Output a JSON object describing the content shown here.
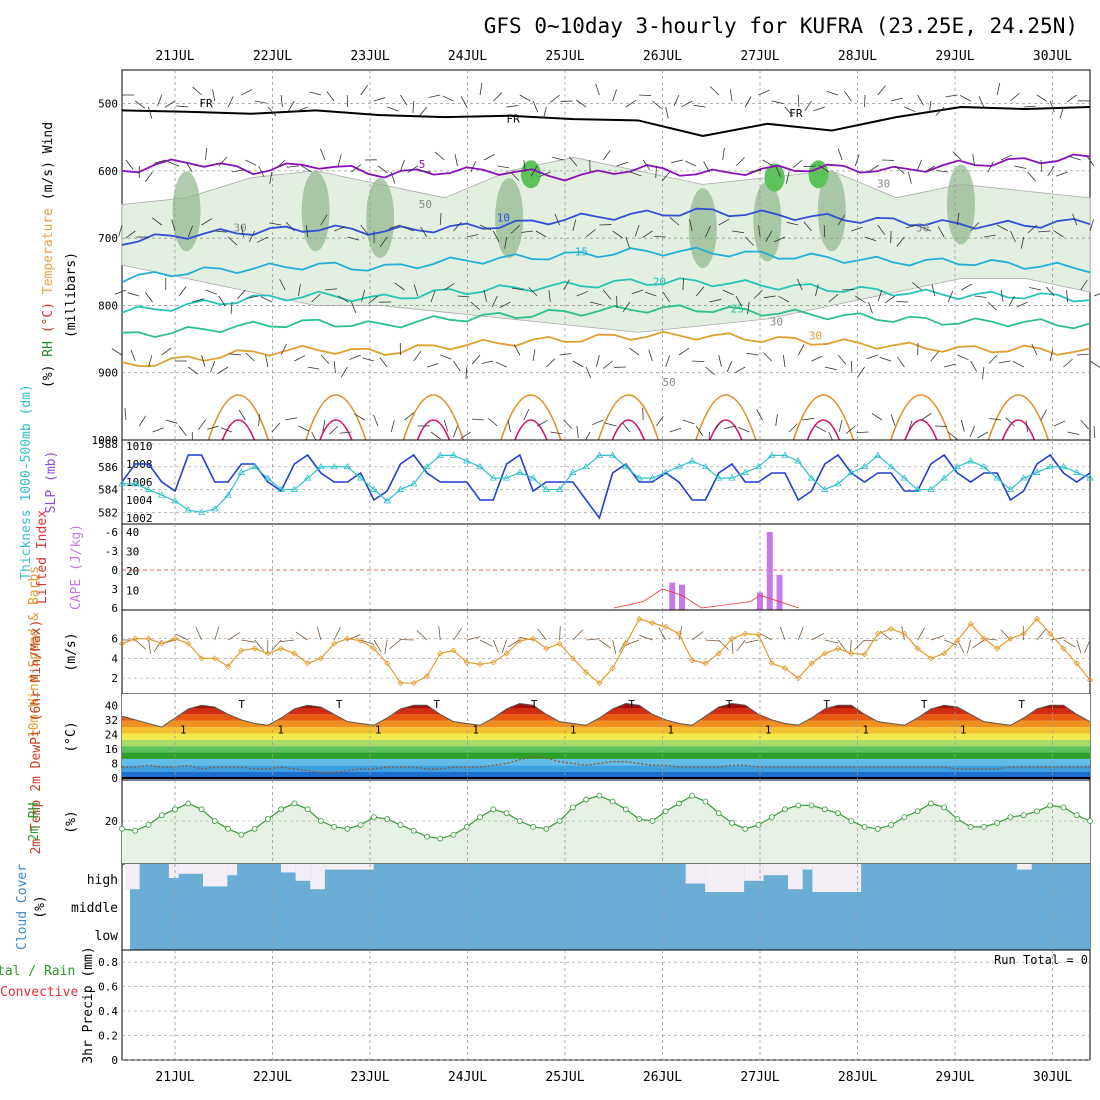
{
  "title": "GFS 0~10day 3-hourly for KUFRA (23.25E, 24.25N)",
  "dates": [
    "21JUL",
    "22JUL",
    "23JUL",
    "24JUL",
    "25JUL",
    "26JUL",
    "27JUL",
    "28JUL",
    "29JUL",
    "30JUL"
  ],
  "colors": {
    "wind_barb": "#333333",
    "rh_light": "#e3f0e1",
    "rh_mid": "#bdd6b9",
    "rh_dark": "#8fb58a",
    "rh_green": "#5ec25a",
    "fr_line": "#000000",
    "slp": "#1f3fd0",
    "thickness": "#2fc2cc",
    "lifted_index": "#e03030",
    "cape": "#c779e8",
    "wind10m": "#e39b2e",
    "rh2m_line": "#3a9a3a",
    "rh2m_fill": "#e6f2e3",
    "cloud": "#6aaed6",
    "cloud_gap": "#f3eef6",
    "grid": "#999999"
  },
  "chart_data": [
    {
      "type": "heatmap",
      "name": "upper-air",
      "ylabel_parts": [
        "Wind",
        "(m/s)",
        "Temperature",
        "(°C)",
        "RH",
        "(%)",
        "(millibars)"
      ],
      "y_ticks": [
        "500",
        "600",
        "700",
        "800",
        "900",
        "1000"
      ],
      "ylim": [
        450,
        1000
      ],
      "freezing_level_label": "FR",
      "freezing_level_mb": [
        510,
        512,
        515,
        510,
        517,
        520,
        518,
        523,
        525,
        548,
        530,
        540,
        520,
        505,
        508,
        505
      ],
      "isotherms": [
        {
          "label": "5",
          "mb": [
            600,
            585,
            600,
            590,
            605,
            600,
            600,
            610,
            595,
            605,
            598,
            595,
            600,
            590,
            585,
            580
          ]
        },
        {
          "label": "10",
          "mb": [
            705,
            695,
            690,
            685,
            690,
            685,
            680,
            670,
            665,
            660,
            665,
            670,
            675,
            680,
            680,
            675
          ]
        },
        {
          "label": "15",
          "mb": [
            760,
            750,
            745,
            740,
            745,
            735,
            730,
            725,
            720,
            720,
            725,
            730,
            735,
            735,
            740,
            745
          ]
        },
        {
          "label": "20",
          "mb": [
            810,
            800,
            790,
            785,
            790,
            780,
            775,
            770,
            765,
            765,
            770,
            775,
            780,
            785,
            785,
            790
          ]
        },
        {
          "label": "25",
          "mb": [
            845,
            838,
            830,
            825,
            830,
            820,
            815,
            810,
            805,
            805,
            810,
            815,
            820,
            825,
            825,
            830
          ]
        },
        {
          "label": "30",
          "mb": [
            890,
            880,
            870,
            865,
            870,
            860,
            855,
            850,
            845,
            845,
            850,
            855,
            860,
            865,
            865,
            870
          ]
        }
      ],
      "rh_labels": [
        "30",
        "50",
        "30",
        "50",
        "30",
        "50",
        "30",
        "30",
        "30",
        "50",
        "30",
        "30",
        "30"
      ],
      "rh_bands_mb": [
        {
          "top": [
            650,
            640,
            610,
            600,
            620,
            640,
            600,
            580,
            600,
            620,
            610,
            600,
            640,
            620,
            630,
            640
          ],
          "bottom": [
            740,
            760,
            780,
            800,
            800,
            810,
            820,
            830,
            840,
            830,
            820,
            800,
            780,
            760,
            760,
            780
          ]
        }
      ]
    },
    {
      "type": "line",
      "name": "thickness-slp",
      "ylabel": "Thickness 1000-500mb (dm)",
      "ylabel2": "SLP (mb)",
      "y_ticks_left": [
        "582",
        "584",
        "586",
        "588"
      ],
      "y_ticks_right": [
        "1002",
        "1004",
        "1006",
        "1008",
        "1010"
      ],
      "series": [
        {
          "name": "SLP (mb)",
          "values": [
            1006,
            1008,
            1008,
            1006,
            1005,
            1009,
            1009,
            1006,
            1006,
            1008,
            1008,
            1006,
            1005,
            1008,
            1009,
            1007,
            1006,
            1006,
            1007,
            1004,
            1005,
            1008,
            1009,
            1007,
            1006,
            1006,
            1006,
            1004,
            1004,
            1008,
            1009,
            1005,
            1006,
            1006,
            1006,
            1004,
            1002,
            1007,
            1008,
            1006,
            1006,
            1007,
            1006,
            1004,
            1004,
            1007,
            1008,
            1006,
            1006,
            1007,
            1007,
            1004,
            1005,
            1008,
            1009,
            1007,
            1006,
            1007,
            1007,
            1005,
            1005,
            1008,
            1009,
            1007,
            1006,
            1007,
            1007,
            1004,
            1005,
            1008,
            1009,
            1007,
            1006,
            1007
          ]
        },
        {
          "name": "Thickness (dm)",
          "values": [
            584.5,
            584.5,
            584,
            583.5,
            583,
            582.2,
            582,
            582.3,
            583.5,
            585.5,
            586,
            585,
            584,
            584,
            585,
            586,
            586,
            586,
            585,
            584,
            583,
            584,
            584.5,
            586,
            587,
            587,
            586.5,
            586,
            585,
            585,
            585.5,
            585,
            584,
            584,
            585.5,
            586,
            587,
            587,
            586,
            585,
            585,
            585.5,
            586,
            586.5,
            586,
            585,
            585,
            585.5,
            586,
            587,
            587,
            586.5,
            585,
            584,
            584.5,
            585.5,
            586,
            587,
            586,
            585,
            584,
            584,
            585,
            586,
            586.5,
            586,
            585,
            584,
            585,
            585.5,
            586,
            586,
            585.5,
            585
          ]
        }
      ]
    },
    {
      "type": "bar",
      "name": "lifted-cape",
      "ylabel": "Lifted Index",
      "ylabel2": "CAPE (J/kg)",
      "y_ticks_left": [
        "-6",
        "-3",
        "0",
        "3",
        "6"
      ],
      "y_ticks_right": [
        "10",
        "20",
        "30",
        "40"
      ],
      "cape_bars": [
        {
          "day_offset": 5.1,
          "value": 14
        },
        {
          "day_offset": 5.2,
          "value": 13
        },
        {
          "day_offset": 6.0,
          "value": 9
        },
        {
          "day_offset": 6.1,
          "value": 40
        },
        {
          "day_offset": 6.2,
          "value": 18
        }
      ],
      "lifted_index": [
        {
          "day_offset": 4.5,
          "value": 6
        },
        {
          "day_offset": 4.8,
          "value": 5
        },
        {
          "day_offset": 5.0,
          "value": 3
        },
        {
          "day_offset": 5.2,
          "value": 4
        },
        {
          "day_offset": 5.4,
          "value": 6
        },
        {
          "day_offset": 5.9,
          "value": 5
        },
        {
          "day_offset": 6.0,
          "value": 4
        },
        {
          "day_offset": 6.2,
          "value": 5
        },
        {
          "day_offset": 6.4,
          "value": 6
        }
      ]
    },
    {
      "type": "line",
      "name": "wind10m",
      "ylabel": "10m Wind Speed & Barbs",
      "yunit": "(m/s)",
      "y_ticks": [
        "2",
        "4",
        "6"
      ],
      "series": [
        {
          "name": "10m Wind",
          "values": [
            5.5,
            6,
            6,
            5.5,
            6,
            5.5,
            4,
            4,
            3.2,
            4.8,
            5,
            4.5,
            5,
            4.5,
            3.5,
            4,
            5.5,
            6,
            5.8,
            5,
            3.5,
            1.5,
            1.5,
            2.2,
            4.5,
            4.8,
            3.6,
            3.4,
            3.6,
            4.5,
            5.8,
            6,
            5,
            5.5,
            4,
            2.6,
            1.5,
            3,
            5.5,
            8,
            7.6,
            7.2,
            6.5,
            3.8,
            3.5,
            4.5,
            6,
            6.5,
            6.4,
            3.5,
            3,
            2,
            3.5,
            4.5,
            5,
            4.5,
            4.4,
            6.5,
            7,
            6.5,
            5,
            4,
            4.5,
            5.8,
            7.5,
            6,
            5,
            6,
            6.5,
            8,
            6.5,
            5,
            3.5,
            1.8
          ]
        }
      ]
    },
    {
      "type": "area",
      "name": "temp2m",
      "ylabel": "2m Temp 2m DewPt (6hr Min/Max)",
      "yunit": "(°C)",
      "y_ticks": [
        "0",
        "8",
        "16",
        "24",
        "32",
        "40"
      ],
      "max_label": "T",
      "min_label": "1",
      "series": [
        {
          "name": "2m Temp",
          "values": [
            34,
            32,
            30,
            28,
            33,
            38,
            40,
            39,
            35,
            32,
            30,
            29,
            33,
            38,
            40,
            39,
            35,
            31,
            30,
            29,
            33,
            38,
            40,
            40,
            35,
            31,
            30,
            29,
            33,
            38,
            41,
            40,
            35,
            31,
            30,
            29,
            33,
            38,
            41,
            40,
            35,
            32,
            30,
            29,
            34,
            39,
            41,
            40,
            35,
            32,
            30,
            29,
            33,
            38,
            40,
            40,
            35,
            31,
            30,
            29,
            33,
            38,
            40,
            39,
            35,
            31,
            30,
            29,
            33,
            38,
            40,
            40,
            35,
            31
          ]
        },
        {
          "name": "2m DewPt",
          "values": [
            6,
            6,
            7,
            6,
            6,
            7,
            5,
            6,
            6,
            6,
            5,
            5,
            6,
            5,
            4,
            3,
            3,
            4,
            5,
            5,
            6,
            6,
            6,
            5,
            5,
            6,
            6,
            6,
            7,
            8,
            10,
            12,
            11,
            9,
            8,
            7,
            8,
            9,
            9,
            8,
            7,
            7,
            6,
            6,
            6,
            6,
            7,
            7,
            6,
            6,
            6,
            6,
            6,
            6,
            6,
            6,
            6,
            6,
            6,
            6,
            6,
            6,
            6,
            5,
            5,
            5,
            5,
            6,
            6,
            6,
            6,
            6,
            6,
            6
          ]
        }
      ]
    },
    {
      "type": "line",
      "name": "rh2m",
      "ylabel": "2m RH",
      "yunit": "(%)",
      "y_ticks": [
        "20"
      ],
      "series": [
        {
          "name": "2m RH",
          "values": [
            16,
            15,
            18,
            23,
            26,
            29,
            26,
            20,
            16,
            13,
            16,
            21,
            26,
            29,
            26,
            20,
            17,
            16,
            18,
            22,
            21,
            18,
            15,
            12,
            11,
            13,
            17,
            22,
            26,
            24,
            20,
            17,
            16,
            20,
            27,
            31,
            33,
            30,
            26,
            21,
            20,
            25,
            29,
            33,
            30,
            24,
            19,
            16,
            18,
            22,
            26,
            28,
            28,
            26,
            24,
            20,
            17,
            16,
            18,
            22,
            25,
            29,
            27,
            21,
            17,
            17,
            19,
            22,
            23,
            25,
            28,
            27,
            23,
            20
          ]
        }
      ]
    },
    {
      "type": "bar",
      "name": "cloud-cover",
      "ylabel": "Cloud Cover",
      "yunit": "(%)",
      "layers": [
        "high",
        "middle",
        "low"
      ],
      "high_gap_segments": [
        {
          "start": 0.0,
          "end": 0.15,
          "depth": 0.9
        },
        {
          "start": 0.45,
          "end": 0.55,
          "depth": 0.5
        },
        {
          "start": 0.55,
          "end": 0.8,
          "depth": 0.35
        },
        {
          "start": 0.8,
          "end": 1.05,
          "depth": 0.8
        },
        {
          "start": 1.05,
          "end": 1.15,
          "depth": 0.4
        },
        {
          "start": 1.6,
          "end": 1.75,
          "depth": 0.3
        },
        {
          "start": 1.75,
          "end": 1.9,
          "depth": 0.6
        },
        {
          "start": 1.9,
          "end": 2.05,
          "depth": 0.9
        },
        {
          "start": 2.05,
          "end": 2.55,
          "depth": 0.2
        },
        {
          "start": 5.75,
          "end": 5.95,
          "depth": 0.7
        },
        {
          "start": 5.95,
          "end": 6.35,
          "depth": 1.0
        },
        {
          "start": 6.35,
          "end": 6.55,
          "depth": 0.6
        },
        {
          "start": 6.55,
          "end": 6.8,
          "depth": 0.4
        },
        {
          "start": 6.8,
          "end": 6.95,
          "depth": 0.9
        },
        {
          "start": 6.95,
          "end": 7.05,
          "depth": 0.2
        },
        {
          "start": 7.05,
          "end": 7.55,
          "depth": 1.0
        },
        {
          "start": 9.15,
          "end": 9.3,
          "depth": 0.2
        }
      ]
    },
    {
      "type": "bar",
      "name": "precip",
      "ylabel": "3hr Precip (mm)",
      "legend_left": [
        "tal / Rain",
        "Convective"
      ],
      "y_ticks": [
        "0",
        "0.2",
        "0.4",
        "0.6",
        "0.8"
      ],
      "ylim": [
        0,
        0.9
      ],
      "run_total_label": "Run Total = 0",
      "values": []
    }
  ]
}
